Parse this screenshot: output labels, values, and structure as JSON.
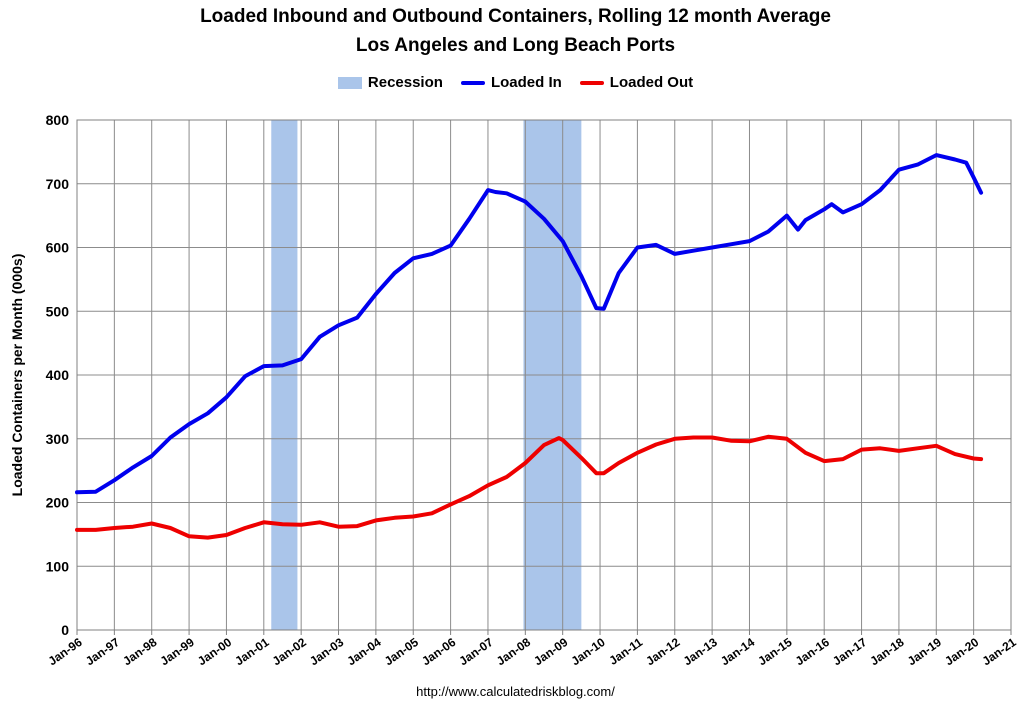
{
  "chart_data": {
    "type": "line",
    "title": "Loaded Inbound and Outbound Containers, Rolling 12 month Average",
    "subtitle": "Los Angeles and Long Beach Ports",
    "ylabel": "Loaded Containers per Month (000s)",
    "xlabel": "",
    "ylim": [
      0,
      800
    ],
    "yticks": [
      0,
      100,
      200,
      300,
      400,
      500,
      600,
      700,
      800
    ],
    "xlim": [
      1996,
      2021
    ],
    "xticks": [
      "Jan-96",
      "Jan-97",
      "Jan-98",
      "Jan-99",
      "Jan-00",
      "Jan-01",
      "Jan-02",
      "Jan-03",
      "Jan-04",
      "Jan-05",
      "Jan-06",
      "Jan-07",
      "Jan-08",
      "Jan-09",
      "Jan-10",
      "Jan-11",
      "Jan-12",
      "Jan-13",
      "Jan-14",
      "Jan-15",
      "Jan-16",
      "Jan-17",
      "Jan-18",
      "Jan-19",
      "Jan-20",
      "Jan-21"
    ],
    "grid": true,
    "legend_position": "top-center",
    "recessions": [
      {
        "start": 2001.2,
        "end": 2001.9
      },
      {
        "start": 2007.95,
        "end": 2009.5
      }
    ],
    "series": [
      {
        "name": "Recession",
        "color": "#aac5ea",
        "kind": "band"
      },
      {
        "name": "Loaded In",
        "color": "#0000ee",
        "x": [
          1996.0,
          1996.5,
          1997.0,
          1997.5,
          1998.0,
          1998.5,
          1999.0,
          1999.5,
          2000.0,
          2000.5,
          2001.0,
          2001.5,
          2002.0,
          2002.5,
          2003.0,
          2003.5,
          2004.0,
          2004.5,
          2005.0,
          2005.5,
          2006.0,
          2006.5,
          2007.0,
          2007.2,
          2007.5,
          2008.0,
          2008.5,
          2009.0,
          2009.5,
          2009.9,
          2010.1,
          2010.5,
          2011.0,
          2011.5,
          2012.0,
          2012.5,
          2013.0,
          2013.5,
          2014.0,
          2014.5,
          2015.0,
          2015.3,
          2015.5,
          2016.0,
          2016.2,
          2016.5,
          2017.0,
          2017.5,
          2018.0,
          2018.5,
          2019.0,
          2019.5,
          2019.8,
          2020.0,
          2020.2
        ],
        "values": [
          216,
          217,
          235,
          255,
          273,
          302,
          323,
          340,
          365,
          398,
          414,
          415,
          425,
          460,
          478,
          490,
          527,
          560,
          583,
          590,
          603,
          645,
          690,
          687,
          685,
          672,
          645,
          610,
          555,
          505,
          504,
          560,
          600,
          604,
          590,
          595,
          600,
          605,
          610,
          625,
          650,
          628,
          643,
          660,
          668,
          655,
          668,
          690,
          722,
          730,
          745,
          738,
          733,
          710,
          686
        ]
      },
      {
        "name": "Loaded Out",
        "color": "#ee0000",
        "x": [
          1996.0,
          1996.5,
          1997.0,
          1997.5,
          1998.0,
          1998.5,
          1999.0,
          1999.5,
          2000.0,
          2000.5,
          2001.0,
          2001.5,
          2002.0,
          2002.5,
          2003.0,
          2003.5,
          2004.0,
          2004.5,
          2005.0,
          2005.5,
          2006.0,
          2006.5,
          2007.0,
          2007.5,
          2008.0,
          2008.5,
          2008.9,
          2009.0,
          2009.5,
          2009.9,
          2010.1,
          2010.5,
          2011.0,
          2011.5,
          2012.0,
          2012.5,
          2013.0,
          2013.5,
          2014.0,
          2014.5,
          2015.0,
          2015.5,
          2016.0,
          2016.5,
          2017.0,
          2017.5,
          2018.0,
          2018.5,
          2019.0,
          2019.5,
          2020.0,
          2020.2
        ],
        "values": [
          157,
          157,
          160,
          162,
          167,
          160,
          147,
          145,
          149,
          160,
          169,
          166,
          165,
          169,
          162,
          163,
          172,
          176,
          178,
          183,
          197,
          210,
          227,
          240,
          262,
          290,
          301,
          298,
          270,
          246,
          246,
          262,
          278,
          291,
          300,
          302,
          302,
          297,
          296,
          303,
          300,
          278,
          265,
          268,
          283,
          285,
          281,
          285,
          289,
          276,
          269,
          268
        ]
      }
    ]
  },
  "source": "http://www.calculatedriskblog.com/"
}
